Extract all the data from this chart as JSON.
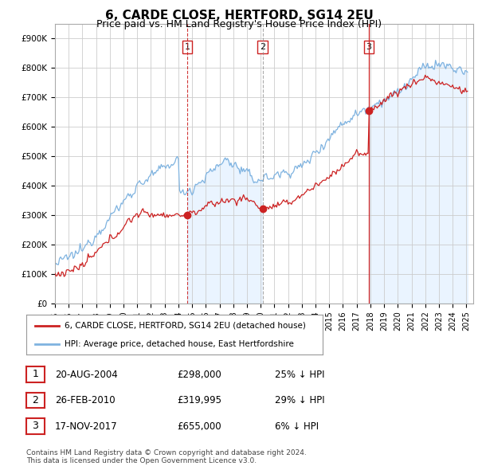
{
  "title": "6, CARDE CLOSE, HERTFORD, SG14 2EU",
  "subtitle": "Price paid vs. HM Land Registry's House Price Index (HPI)",
  "title_fontsize": 11,
  "subtitle_fontsize": 9,
  "ylim": [
    0,
    950000
  ],
  "yticks": [
    0,
    100000,
    200000,
    300000,
    400000,
    500000,
    600000,
    700000,
    800000,
    900000
  ],
  "ytick_labels": [
    "£0",
    "£100K",
    "£200K",
    "£300K",
    "£400K",
    "£500K",
    "£600K",
    "£700K",
    "£800K",
    "£900K"
  ],
  "line_color_hpi": "#7fb3e0",
  "line_color_price": "#cc2222",
  "marker_color": "#cc2222",
  "sale_points": [
    {
      "date_num": 2004.64,
      "price": 298000,
      "label": "1"
    },
    {
      "date_num": 2010.15,
      "price": 319995,
      "label": "2"
    },
    {
      "date_num": 2017.88,
      "price": 655000,
      "label": "3"
    }
  ],
  "legend_entries": [
    "6, CARDE CLOSE, HERTFORD, SG14 2EU (detached house)",
    "HPI: Average price, detached house, East Hertfordshire"
  ],
  "table_data": [
    [
      "1",
      "20-AUG-2004",
      "£298,000",
      "25% ↓ HPI"
    ],
    [
      "2",
      "26-FEB-2010",
      "£319,995",
      "29% ↓ HPI"
    ],
    [
      "3",
      "17-NOV-2017",
      "£655,000",
      "6% ↓ HPI"
    ]
  ],
  "footnote": "Contains HM Land Registry data © Crown copyright and database right 2024.\nThis data is licensed under the Open Government Licence v3.0.",
  "background_color": "#ffffff",
  "grid_color": "#cccccc",
  "fill_color": "#ddeeff"
}
